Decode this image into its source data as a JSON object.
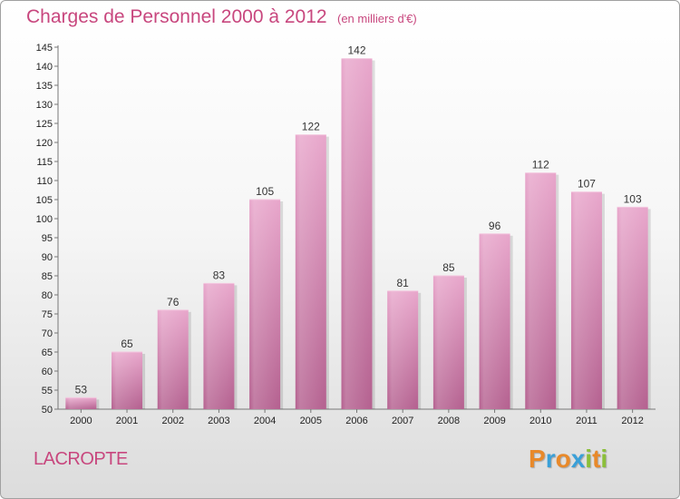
{
  "chart_data": {
    "type": "bar",
    "title": "Charges de Personnel 2000 à 2012",
    "subtitle": "(en milliers d'€)",
    "categories": [
      "2000",
      "2001",
      "2002",
      "2003",
      "2004",
      "2005",
      "2006",
      "2007",
      "2008",
      "2009",
      "2010",
      "2011",
      "2012"
    ],
    "values": [
      53,
      65,
      76,
      83,
      105,
      122,
      142,
      81,
      85,
      96,
      112,
      107,
      103
    ],
    "ylim": [
      50,
      145
    ],
    "yticks": [
      50,
      55,
      60,
      65,
      70,
      75,
      80,
      85,
      90,
      95,
      100,
      105,
      110,
      115,
      120,
      125,
      130,
      135,
      140,
      145
    ],
    "grid": false,
    "bar_color": "#d67aaa"
  },
  "footer": {
    "commune": "LACROPTE",
    "brand_letters": [
      {
        "ch": "P",
        "color": "#e8892a"
      },
      {
        "ch": "r",
        "color": "#3aa0d8"
      },
      {
        "ch": "o",
        "color": "#e8892a"
      },
      {
        "ch": "x",
        "color": "#3aa0d8"
      },
      {
        "ch": "i",
        "color": "#8bbf3a"
      },
      {
        "ch": "t",
        "color": "#e8892a"
      },
      {
        "ch": "i",
        "color": "#8bbf3a"
      }
    ]
  }
}
